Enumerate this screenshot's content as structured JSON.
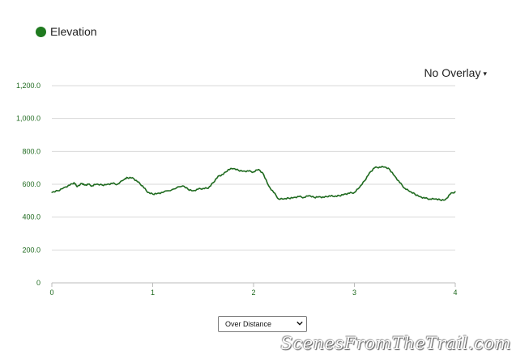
{
  "legend": {
    "label": "Elevation",
    "color": "#1f7a1f"
  },
  "overlay": {
    "label": "No Overlay",
    "caret": "▾"
  },
  "select": {
    "selected": "Over Distance"
  },
  "watermark": "ScenesFromTheTrail.com",
  "chart_data": {
    "type": "line",
    "title": "",
    "xlabel": "",
    "ylabel": "",
    "xlim": [
      0,
      4
    ],
    "ylim": [
      0,
      1200
    ],
    "grid": true,
    "y_ticks": [
      0,
      200,
      400,
      600,
      800,
      1000,
      1200
    ],
    "y_tick_labels": [
      "0",
      "200.0",
      "400.0",
      "600.0",
      "800.0",
      "1,000.0",
      "1,200.0"
    ],
    "x_ticks": [
      0,
      1,
      2,
      3,
      4
    ],
    "x_tick_labels": [
      "0",
      "1",
      "2",
      "3",
      "4"
    ],
    "series": [
      {
        "name": "Elevation",
        "color": "#1f6a1f",
        "x": [
          0,
          0.06,
          0.12,
          0.18,
          0.22,
          0.25,
          0.3,
          0.33,
          0.36,
          0.4,
          0.44,
          0.5,
          0.55,
          0.6,
          0.65,
          0.72,
          0.75,
          0.8,
          0.85,
          0.9,
          0.95,
          1.0,
          1.05,
          1.1,
          1.2,
          1.3,
          1.35,
          1.4,
          1.45,
          1.5,
          1.55,
          1.6,
          1.65,
          1.7,
          1.75,
          1.8,
          1.85,
          1.9,
          1.95,
          2.0,
          2.05,
          2.1,
          2.15,
          2.2,
          2.25,
          2.3,
          2.35,
          2.4,
          2.45,
          2.5,
          2.55,
          2.6,
          2.65,
          2.7,
          2.75,
          2.8,
          2.85,
          2.9,
          2.95,
          3.0,
          3.05,
          3.1,
          3.15,
          3.2,
          3.25,
          3.3,
          3.35,
          3.4,
          3.45,
          3.5,
          3.55,
          3.6,
          3.65,
          3.7,
          3.75,
          3.8,
          3.85,
          3.9,
          3.95,
          4.0
        ],
        "values": [
          550,
          560,
          580,
          595,
          610,
          585,
          605,
          595,
          600,
          590,
          600,
          595,
          600,
          605,
          600,
          630,
          640,
          640,
          615,
          590,
          550,
          540,
          545,
          550,
          570,
          590,
          570,
          560,
          570,
          575,
          575,
          610,
          650,
          660,
          690,
          695,
          685,
          680,
          680,
          675,
          690,
          660,
          590,
          550,
          510,
          510,
          515,
          520,
          525,
          520,
          530,
          520,
          525,
          520,
          530,
          525,
          530,
          540,
          545,
          550,
          580,
          620,
          670,
          700,
          705,
          705,
          690,
          650,
          610,
          575,
          555,
          540,
          525,
          515,
          510,
          510,
          505,
          505,
          540,
          555
        ]
      }
    ]
  }
}
